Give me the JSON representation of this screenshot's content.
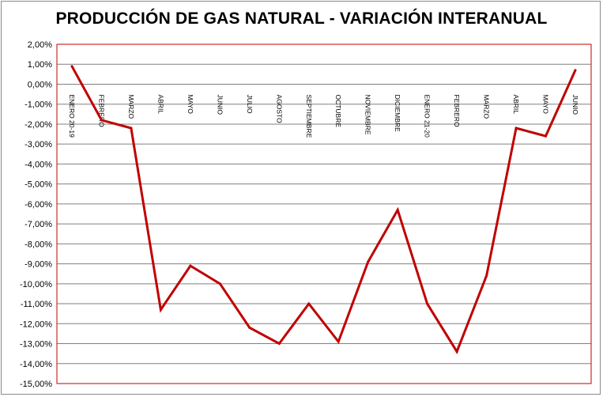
{
  "chart_data": {
    "type": "line",
    "title": "PRODUCCIÓN DE GAS NATURAL - VARIACIÓN INTERANUAL",
    "categories": [
      "ENERO 20-19",
      "FEBRERO",
      "MARZO",
      "ABRIL",
      "MAYO",
      "JUNIO",
      "JULIO",
      "AGOSTO",
      "SEPTIEMBRE",
      "OCTUBRE",
      "NOVIEMBRE",
      "DICIEMBRE",
      "ENERO 21-20",
      "FEBRERO",
      "MARZO",
      "ABRIL",
      "MAYO",
      "JUNIO"
    ],
    "series": [
      {
        "values": [
          0.9,
          -1.8,
          -2.2,
          -11.3,
          -9.1,
          -10.0,
          -12.2,
          -13.0,
          -11.0,
          -12.9,
          -8.9,
          -6.3,
          -11.0,
          -13.4,
          -9.6,
          -2.2,
          -2.6,
          0.7
        ],
        "color": "#c00000"
      }
    ],
    "ylim": [
      -15,
      2
    ],
    "ytick_step": 1,
    "ytick_labels": [
      "2,00%",
      "1,00%",
      "0,00%",
      "-1,00%",
      "-2,00%",
      "-3,00%",
      "-4,00%",
      "-5,00%",
      "-6,00%",
      "-7,00%",
      "-8,00%",
      "-9,00%",
      "-10,00%",
      "-11,00%",
      "-12,00%",
      "-13,00%",
      "-14,00%",
      "-15,00%"
    ],
    "grid": true,
    "gridline_color": "#808080",
    "plot_border_color": "#c00000"
  }
}
